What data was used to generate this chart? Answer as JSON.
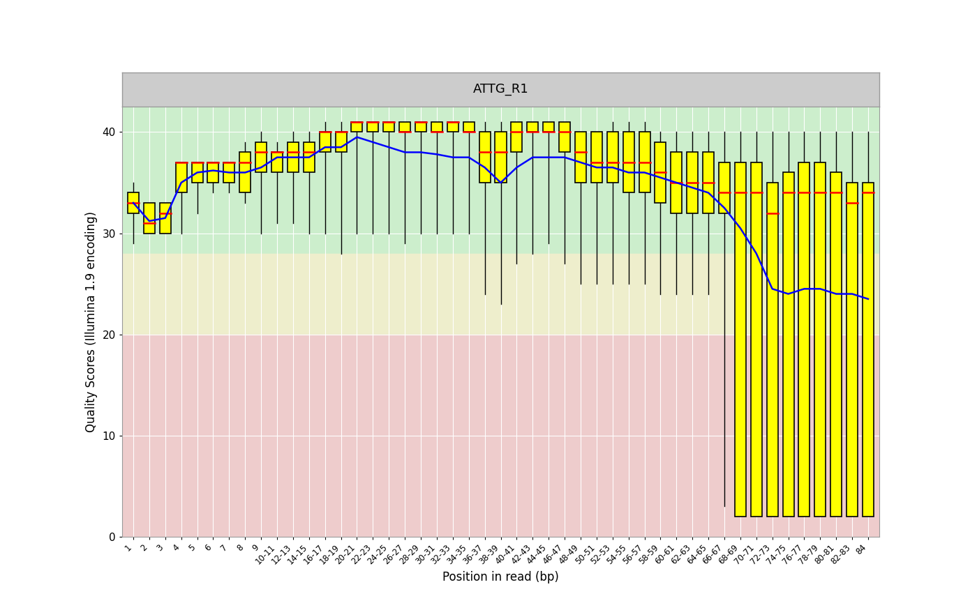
{
  "title": "ATTG_R1",
  "xlabel": "Position in read (bp)",
  "ylabel": "Quality Scores (Illumina 1.9 encoding)",
  "ylim": [
    0,
    42
  ],
  "yticks": [
    0,
    10,
    20,
    30,
    40
  ],
  "bg_green_min": 28,
  "bg_yellow_min": 20,
  "bg_pink_min": 0,
  "bg_green_color": "#CCEECC",
  "bg_yellow_color": "#EEEECC",
  "bg_pink_color": "#EECCCC",
  "box_color": "#FFFF00",
  "box_edge_color": "black",
  "median_color": "red",
  "mean_color": "blue",
  "whisker_color": "black",
  "header_color": "#CCCCCC",
  "labels": [
    "1",
    "2",
    "3",
    "4",
    "5",
    "6",
    "7",
    "8",
    "9",
    "10-11",
    "12-13",
    "14-15",
    "16-17",
    "18-19",
    "20-21",
    "22-23",
    "24-25",
    "26-27",
    "28-29",
    "30-31",
    "32-33",
    "34-35",
    "36-37",
    "38-39",
    "40-41",
    "42-43",
    "44-45",
    "46-47",
    "48-49",
    "50-51",
    "52-53",
    "54-55",
    "56-57",
    "58-59",
    "60-61",
    "62-63",
    "64-65",
    "66-67",
    "68-69",
    "70-71",
    "72-73",
    "74-75",
    "76-77",
    "78-79",
    "80-81",
    "82-83",
    "84"
  ],
  "q1": [
    32,
    30,
    30,
    34,
    35,
    35,
    35,
    34,
    36,
    36,
    36,
    36,
    38,
    38,
    40,
    40,
    40,
    40,
    40,
    40,
    40,
    40,
    35,
    35,
    38,
    40,
    40,
    38,
    35,
    35,
    35,
    34,
    34,
    33,
    32,
    32,
    32,
    32,
    2,
    2,
    2,
    2,
    2,
    2,
    2,
    2,
    2
  ],
  "median": [
    33,
    31,
    32,
    37,
    37,
    37,
    37,
    37,
    38,
    38,
    38,
    38,
    40,
    40,
    41,
    41,
    41,
    40,
    41,
    40,
    41,
    40,
    38,
    38,
    40,
    40,
    40,
    40,
    38,
    37,
    37,
    37,
    37,
    36,
    35,
    35,
    35,
    34,
    34,
    34,
    32,
    34,
    34,
    34,
    34,
    33,
    34
  ],
  "q3": [
    34,
    33,
    33,
    37,
    37,
    37,
    37,
    38,
    39,
    38,
    39,
    39,
    40,
    40,
    41,
    41,
    41,
    41,
    41,
    41,
    41,
    41,
    40,
    40,
    41,
    41,
    41,
    41,
    40,
    40,
    40,
    40,
    40,
    39,
    38,
    38,
    38,
    37,
    37,
    37,
    35,
    36,
    37,
    37,
    36,
    35,
    35
  ],
  "whisker_low": [
    29,
    30,
    30,
    30,
    32,
    34,
    34,
    33,
    30,
    31,
    31,
    30,
    30,
    28,
    30,
    30,
    30,
    29,
    30,
    30,
    30,
    30,
    24,
    23,
    27,
    28,
    29,
    27,
    25,
    25,
    25,
    25,
    25,
    24,
    24,
    24,
    24,
    3,
    2,
    2,
    2,
    2,
    2,
    2,
    2,
    2,
    2
  ],
  "whisker_high": [
    35,
    33,
    33,
    37,
    37,
    37,
    37,
    39,
    40,
    39,
    40,
    40,
    41,
    41,
    41,
    41,
    41,
    41,
    41,
    41,
    41,
    41,
    41,
    41,
    41,
    41,
    41,
    41,
    40,
    40,
    41,
    41,
    41,
    40,
    40,
    40,
    40,
    40,
    40,
    40,
    40,
    40,
    40,
    40,
    40,
    40,
    40
  ],
  "mean": [
    33.0,
    31.2,
    31.5,
    35.0,
    36.0,
    36.2,
    36.0,
    36.0,
    36.5,
    37.5,
    37.5,
    37.5,
    38.5,
    38.5,
    39.5,
    39.0,
    38.5,
    38.0,
    38.0,
    37.8,
    37.5,
    37.5,
    36.5,
    35.0,
    36.5,
    37.5,
    37.5,
    37.5,
    37.0,
    36.5,
    36.5,
    36.0,
    36.0,
    35.5,
    35.0,
    34.5,
    34.0,
    32.5,
    30.5,
    28.0,
    24.5,
    24.0,
    24.5,
    24.5,
    24.0,
    24.0,
    23.5
  ],
  "figsize": [
    14.0,
    8.65
  ],
  "dpi": 100
}
